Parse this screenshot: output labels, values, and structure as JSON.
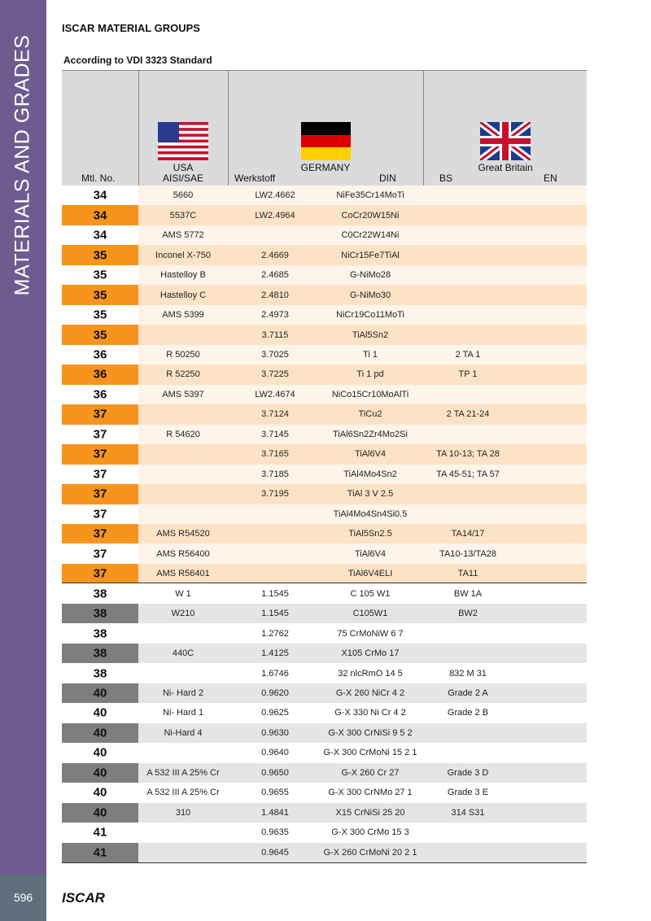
{
  "sidebar": {
    "label": "MATERIALS AND GRADES",
    "page_number": "596"
  },
  "header": {
    "title": "ISCAR MATERIAL GROUPS",
    "subtitle": "According to VDI 3323 Standard"
  },
  "table": {
    "columns": {
      "mtl": "Mtl. No.",
      "usa_country": "USA",
      "usa_standard": "AISI/SAE",
      "germany_country": "GERMANY",
      "werkstoff": "Werkstoff",
      "din": "DIN",
      "gb_country": "Great Britain",
      "bs": "BS",
      "en": "EN"
    },
    "groups": [
      {
        "rows": [
          [
            "34",
            "5660",
            "LW2.4662",
            "NiFe35Cr14MoTi",
            null
          ],
          [
            "34",
            "5537C",
            "LW2.4964",
            "CoCr20W15Ni",
            null
          ],
          [
            "34",
            "AMS 5772",
            null,
            "C0Cr22W14Ni",
            null
          ],
          [
            "35",
            "Inconel X-750",
            "2.4669",
            "NiCr15Fe7TiAl",
            null
          ],
          [
            "35",
            "Hastelloy B",
            "2.4685",
            "G-NiMo28",
            null
          ],
          [
            "35",
            "Hastelloy C",
            "2.4810",
            "G-NiMo30",
            null
          ],
          [
            "35",
            "AMS 5399",
            "2.4973",
            "NiCr19Co11MoTi",
            null
          ],
          [
            "35",
            null,
            "3.7115",
            "TiAl5Sn2",
            null
          ],
          [
            "36",
            "R 50250",
            "3.7025",
            "Ti 1",
            "2 TA 1"
          ],
          [
            "36",
            "R 52250",
            "3.7225",
            "Ti 1 pd",
            "TP 1"
          ],
          [
            "36",
            "AMS 5397",
            "LW2.4674",
            "NiCo15Cr10MoAlTi",
            null
          ],
          [
            "37",
            null,
            "3.7124",
            "TiCu2",
            "2 TA 21-24"
          ],
          [
            "37",
            "R 54620",
            "3.7145",
            "TiAl6Sn2Zr4Mo2Si",
            null
          ],
          [
            "37",
            null,
            "3.7165",
            "TiAl6V4",
            "TA 10-13; TA 28"
          ],
          [
            "37",
            null,
            "3.7185",
            "TiAl4Mo4Sn2",
            "TA 45-51; TA 57"
          ],
          [
            "37",
            null,
            "3.7195",
            "TiAl 3 V 2.5",
            null
          ],
          [
            "37",
            null,
            null,
            "TiAl4Mo4Sn4Si0.5",
            null
          ],
          [
            "37",
            "AMS R54520",
            null,
            "TiAl5Sn2.5",
            "TA14/17"
          ],
          [
            "37",
            "AMS R56400",
            null,
            "TiAl6V4",
            "TA10-13/TA28"
          ],
          [
            "37",
            "AMS R56401",
            null,
            "TiAl6V4ELI",
            "TA11"
          ]
        ]
      },
      {
        "rows": [
          [
            "38",
            "W 1",
            "1.1545",
            "C 105 W1",
            "BW 1A"
          ],
          [
            "38",
            "W210",
            "1.1545",
            "C105W1",
            "BW2"
          ],
          [
            "38",
            null,
            "1.2762",
            "75 CrMoNiW 6 7",
            null
          ],
          [
            "38",
            "440C",
            "1.4125",
            "X105 CrMo 17",
            null
          ],
          [
            "38",
            null,
            "1.6746",
            "32 nlcRmO 14 5",
            "832 M 31"
          ],
          [
            "40",
            "Ni- Hard 2",
            "0.9620",
            "G-X 260 NiCr 4 2",
            "Grade 2 A"
          ],
          [
            "40",
            "Ni- Hard 1",
            "0.9625",
            "G-X 330 Ni Cr 4 2",
            "Grade 2 B"
          ],
          [
            "40",
            "Ni-Hard 4",
            "0.9630",
            "G-X 300 CrNiSi 9 5 2",
            null
          ],
          [
            "40",
            null,
            "0.9640",
            "G-X 300 CrMoNi 15 2 1",
            null
          ],
          [
            "40",
            "A 532 III A 25% Cr",
            "0.9650",
            "G-X 260 Cr 27",
            "Grade 3 D"
          ],
          [
            "40",
            "A 532 III A 25% Cr",
            "0.9655",
            "G-X 300 CrNMo 27 1",
            "Grade 3 E"
          ],
          [
            "40",
            "310",
            "1.4841",
            "X15 CrNiSi 25 20",
            "314 S31"
          ],
          [
            "41",
            null,
            "0.9635",
            "G-X 300 CrMo 15 3",
            null
          ],
          [
            "41",
            null,
            "0.9645",
            "G-X 260 CrMoNi 20 2 1",
            null
          ]
        ]
      }
    ]
  },
  "footer": {
    "brand": "ISCAR"
  }
}
